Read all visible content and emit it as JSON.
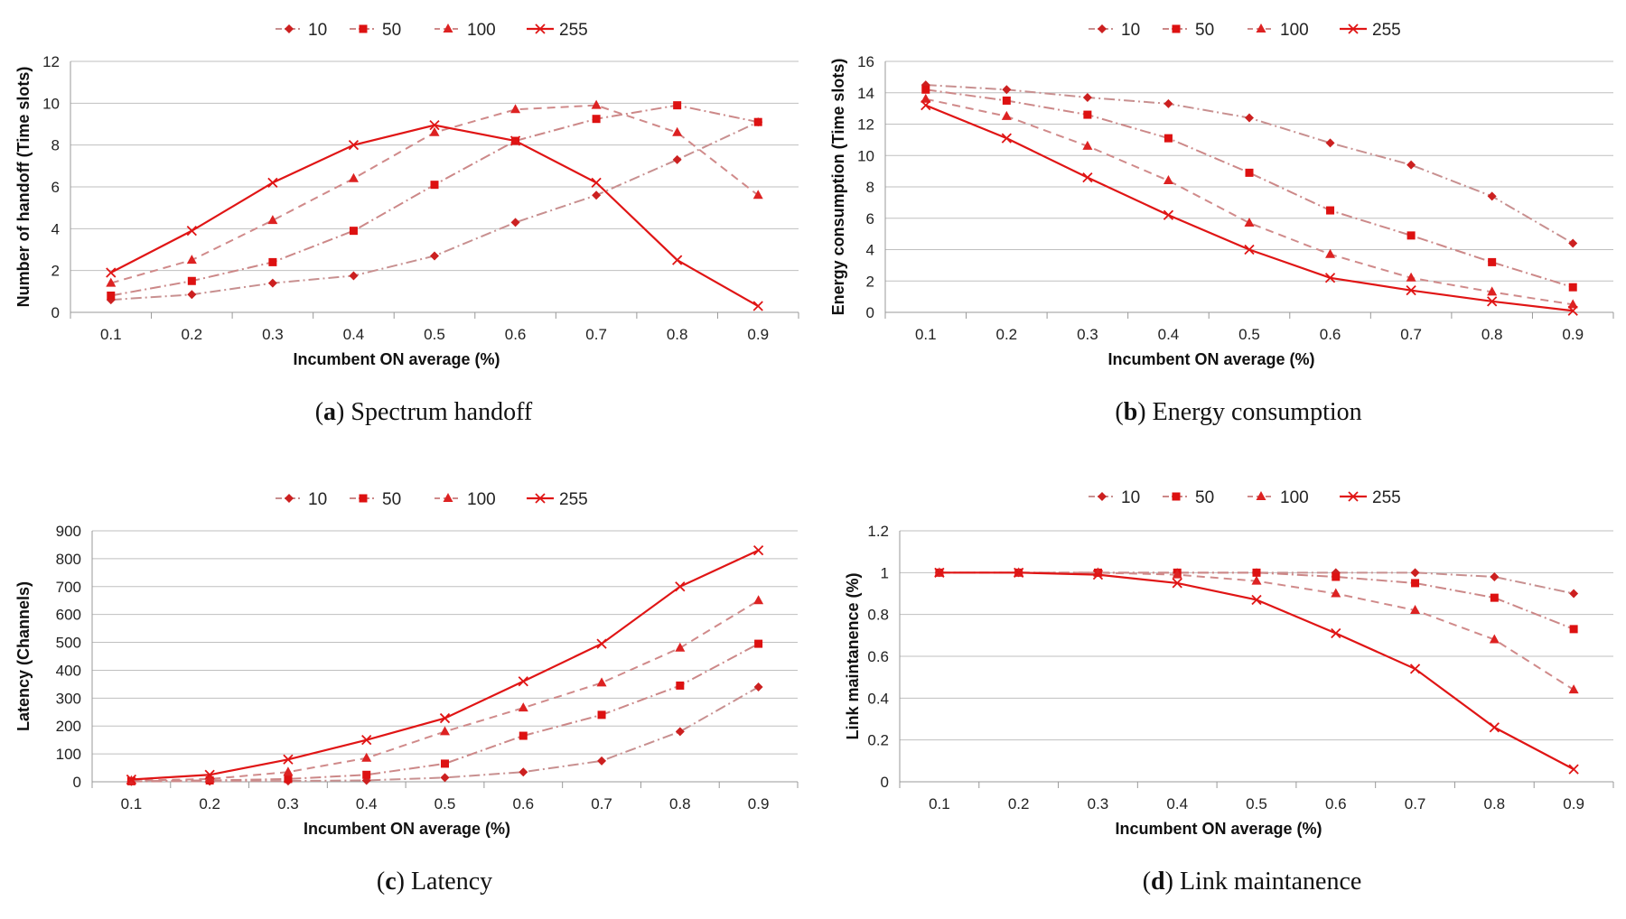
{
  "colors": {
    "series_10": "#cc2020",
    "series_50": "#dd1111",
    "series_100": "#dd2222",
    "series_255": "#e01515",
    "line_10": "#c89090",
    "line_50": "#cc8888",
    "line_100": "#d08a8a",
    "line_255": "#e01515",
    "grid": "#bfbfbf",
    "axis": "#999999"
  },
  "chart_data": [
    {
      "id": "a",
      "type": "line",
      "caption": {
        "letter": "a",
        "open": "(",
        "close": ")",
        "text": " Spectrum handoff"
      },
      "xlabel": "Incumbent ON average (%)",
      "ylabel": "Number of handoff (Time slots)",
      "categories": [
        "0.1",
        "0.2",
        "0.3",
        "0.4",
        "0.5",
        "0.6",
        "0.7",
        "0.8",
        "0.9"
      ],
      "ylim": [
        0,
        12
      ],
      "yticks": [
        "0",
        "2",
        "4",
        "6",
        "8",
        "10",
        "12"
      ],
      "grid": true,
      "legend": "top-center",
      "series": [
        {
          "name": "10",
          "marker": "diamond",
          "dash": "dashdot",
          "values": [
            0.6,
            0.85,
            1.4,
            1.75,
            2.7,
            4.3,
            5.6,
            7.3,
            9.1
          ]
        },
        {
          "name": "50",
          "marker": "square",
          "dash": "dashdot",
          "values": [
            0.8,
            1.5,
            2.4,
            3.9,
            6.1,
            8.2,
            9.25,
            9.9,
            9.1
          ]
        },
        {
          "name": "100",
          "marker": "triangle",
          "dash": "dash",
          "values": [
            1.4,
            2.5,
            4.4,
            6.4,
            8.6,
            9.7,
            9.9,
            8.6,
            5.6
          ]
        },
        {
          "name": "255",
          "marker": "cross",
          "dash": "solid",
          "values": [
            1.9,
            3.9,
            6.2,
            8.0,
            8.95,
            8.2,
            6.2,
            2.5,
            0.3
          ]
        }
      ]
    },
    {
      "id": "b",
      "type": "line",
      "caption": {
        "letter": "b",
        "open": "(",
        "close": ")",
        "text": " Energy consumption"
      },
      "xlabel": "Incumbent ON average (%)",
      "ylabel": "Energy consumption (Time slots)",
      "categories": [
        "0.1",
        "0.2",
        "0.3",
        "0.4",
        "0.5",
        "0.6",
        "0.7",
        "0.8",
        "0.9"
      ],
      "ylim": [
        0,
        16
      ],
      "yticks": [
        "0",
        "2",
        "4",
        "6",
        "8",
        "10",
        "12",
        "14",
        "16"
      ],
      "grid": true,
      "legend": "top-center",
      "series": [
        {
          "name": "10",
          "marker": "diamond",
          "dash": "dashdot",
          "values": [
            14.5,
            14.2,
            13.7,
            13.3,
            12.4,
            10.8,
            9.4,
            7.4,
            4.4
          ]
        },
        {
          "name": "50",
          "marker": "square",
          "dash": "dashdot",
          "values": [
            14.2,
            13.5,
            12.6,
            11.1,
            8.9,
            6.5,
            4.9,
            3.2,
            1.6
          ]
        },
        {
          "name": "100",
          "marker": "triangle",
          "dash": "dash",
          "values": [
            13.6,
            12.5,
            10.6,
            8.4,
            5.7,
            3.7,
            2.2,
            1.3,
            0.5
          ]
        },
        {
          "name": "255",
          "marker": "cross",
          "dash": "solid",
          "values": [
            13.2,
            11.1,
            8.6,
            6.2,
            4.0,
            2.2,
            1.4,
            0.7,
            0.1
          ]
        }
      ]
    },
    {
      "id": "c",
      "type": "line",
      "caption": {
        "letter": "c",
        "open": "(",
        "close": ")",
        "text": " Latency"
      },
      "xlabel": "Incumbent ON average (%)",
      "ylabel": "Latency (Channels)",
      "categories": [
        "0.1",
        "0.2",
        "0.3",
        "0.4",
        "0.5",
        "0.6",
        "0.7",
        "0.8",
        "0.9"
      ],
      "ylim": [
        0,
        900
      ],
      "yticks": [
        "0",
        "100",
        "200",
        "300",
        "400",
        "500",
        "600",
        "700",
        "800",
        "900"
      ],
      "grid": true,
      "legend": "top-center",
      "series": [
        {
          "name": "10",
          "marker": "diamond",
          "dash": "dashdot",
          "values": [
            1,
            2,
            3,
            5,
            15,
            35,
            75,
            180,
            340
          ]
        },
        {
          "name": "50",
          "marker": "square",
          "dash": "dashdot",
          "values": [
            2,
            5,
            10,
            25,
            65,
            165,
            240,
            345,
            495
          ]
        },
        {
          "name": "100",
          "marker": "triangle",
          "dash": "dash",
          "values": [
            4,
            10,
            35,
            85,
            180,
            265,
            355,
            480,
            650
          ]
        },
        {
          "name": "255",
          "marker": "cross",
          "dash": "solid",
          "values": [
            8,
            25,
            80,
            150,
            228,
            360,
            495,
            700,
            830
          ]
        }
      ]
    },
    {
      "id": "d",
      "type": "line",
      "caption": {
        "letter": "d",
        "open": "(",
        "close": ")",
        "text": " Link maintanence"
      },
      "xlabel": "Incumbent ON average (%)",
      "ylabel": "Link maintanence (%)",
      "categories": [
        "0.1",
        "0.2",
        "0.3",
        "0.4",
        "0.5",
        "0.6",
        "0.7",
        "0.8",
        "0.9"
      ],
      "ylim": [
        0,
        1.2
      ],
      "yticks": [
        "0",
        "0.2",
        "0.4",
        "0.6",
        "0.8",
        "1",
        "1.2"
      ],
      "grid": true,
      "legend": "top-center",
      "series": [
        {
          "name": "10",
          "marker": "diamond",
          "dash": "dashdot",
          "values": [
            1.0,
            1.0,
            1.0,
            1.0,
            1.0,
            1.0,
            1.0,
            0.98,
            0.9
          ]
        },
        {
          "name": "50",
          "marker": "square",
          "dash": "dashdot",
          "values": [
            1.0,
            1.0,
            1.0,
            1.0,
            1.0,
            0.98,
            0.95,
            0.88,
            0.73
          ]
        },
        {
          "name": "100",
          "marker": "triangle",
          "dash": "dash",
          "values": [
            1.0,
            1.0,
            1.0,
            0.99,
            0.96,
            0.9,
            0.82,
            0.68,
            0.44
          ]
        },
        {
          "name": "255",
          "marker": "cross",
          "dash": "solid",
          "values": [
            1.0,
            1.0,
            0.99,
            0.95,
            0.87,
            0.71,
            0.54,
            0.26,
            0.06
          ]
        }
      ]
    }
  ]
}
